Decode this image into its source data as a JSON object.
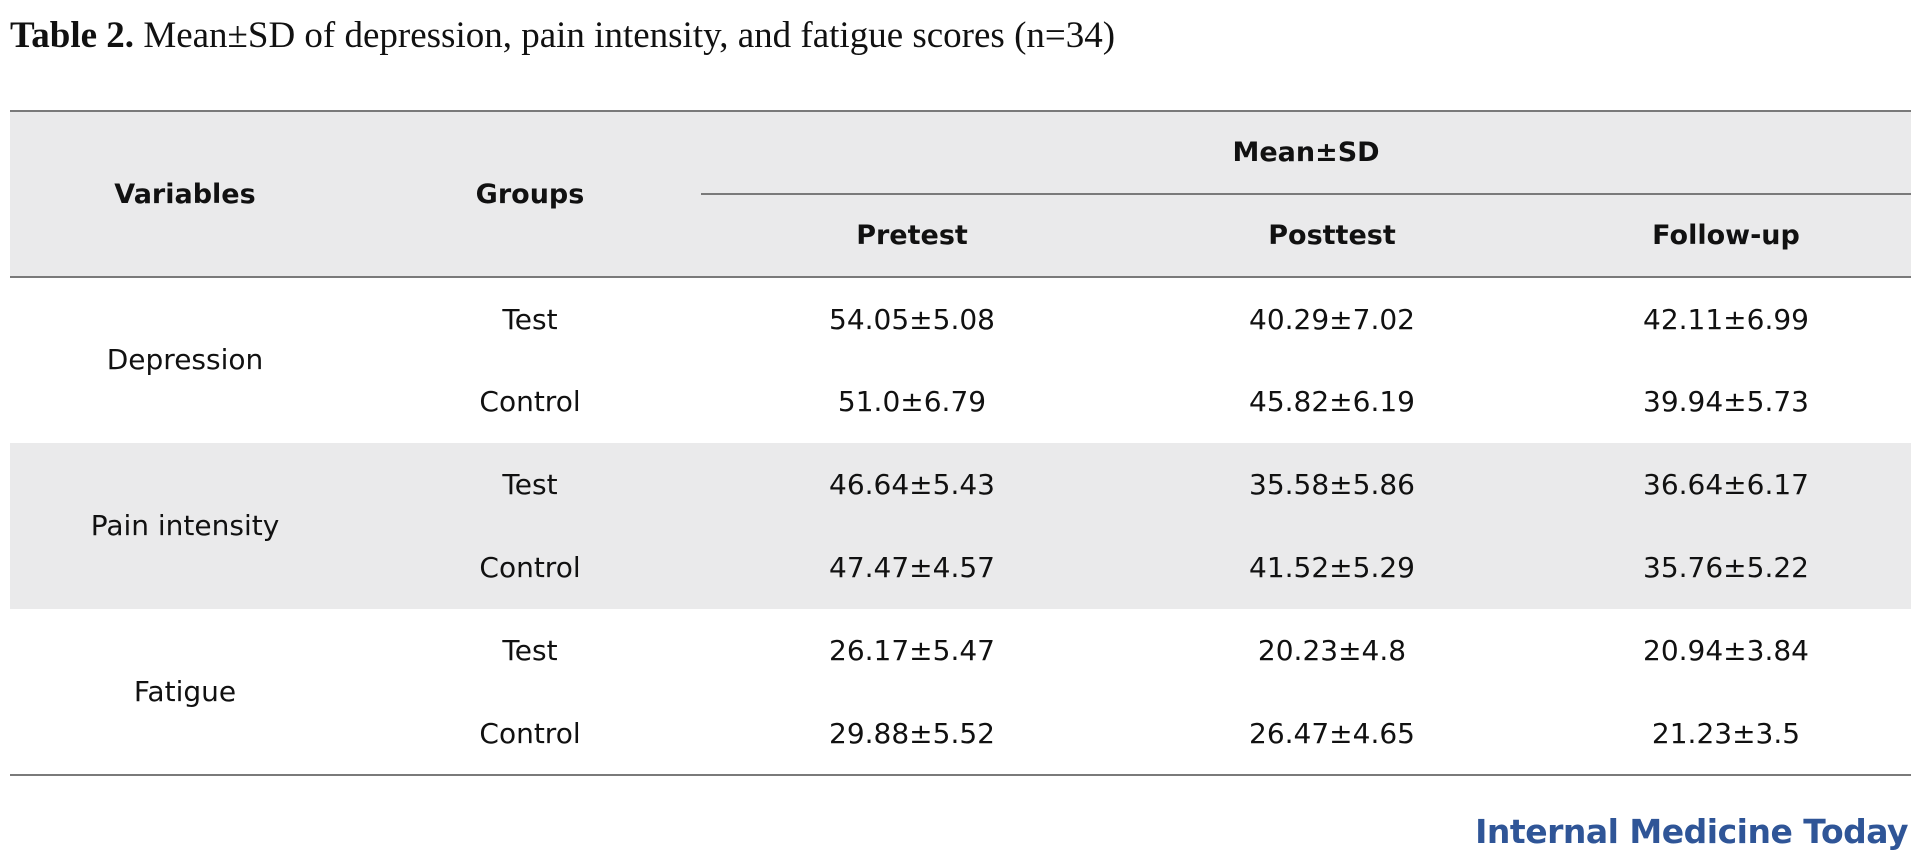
{
  "caption": {
    "label": "Table 2.",
    "text": " Mean±SD of depression, pain intensity, and fatigue scores (n=34)"
  },
  "table": {
    "header": {
      "variables": "Variables",
      "groups": "Groups",
      "group_header": "Mean±SD",
      "columns": [
        "Pretest",
        "Posttest",
        "Follow-up"
      ]
    },
    "rows": [
      {
        "variable": "Depression",
        "groups": [
          {
            "group": "Test",
            "values": [
              "54.05±5.08",
              "40.29±7.02",
              "42.11±6.99"
            ]
          },
          {
            "group": "Control",
            "values": [
              "51.0±6.79",
              "45.82±6.19",
              "39.94±5.73"
            ]
          }
        ]
      },
      {
        "variable": "Pain intensity",
        "groups": [
          {
            "group": "Test",
            "values": [
              "46.64±5.43",
              "35.58±5.86",
              "36.64±6.17"
            ]
          },
          {
            "group": "Control",
            "values": [
              "47.47±4.57",
              "41.52±5.29",
              "35.76±5.22"
            ]
          }
        ]
      },
      {
        "variable": "Fatigue",
        "groups": [
          {
            "group": "Test",
            "values": [
              "26.17±5.47",
              "20.23±4.8",
              "20.94±3.84"
            ]
          },
          {
            "group": "Control",
            "values": [
              "29.88±5.52",
              "26.47±4.65",
              "21.23±3.5"
            ]
          }
        ]
      }
    ]
  },
  "footer": {
    "brand": "Internal Medicine Today"
  },
  "colors": {
    "header_bg": "#eaeaeb",
    "rule": "#7a7a7a",
    "brand": "#2f5597"
  }
}
